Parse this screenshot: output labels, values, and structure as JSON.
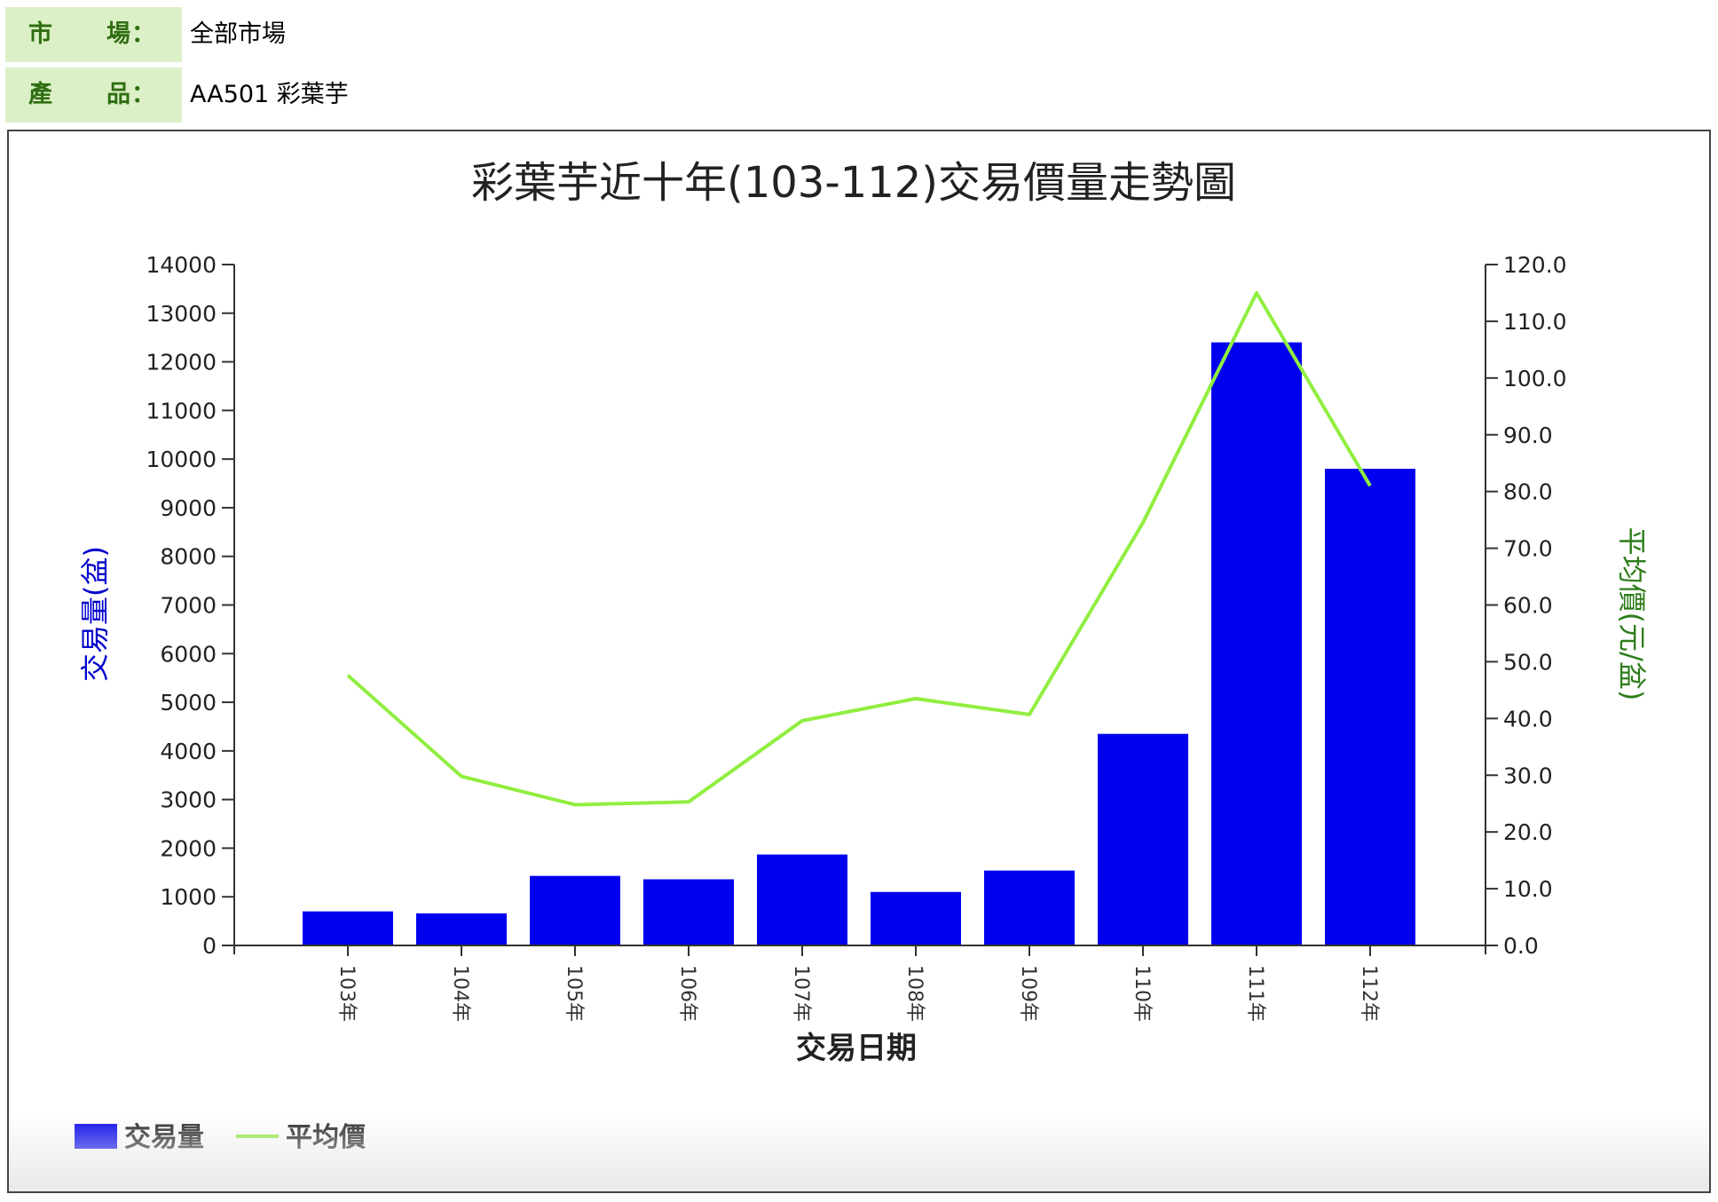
{
  "info": {
    "market": {
      "label_a": "市",
      "label_b": "場：",
      "value": "全部市場"
    },
    "product": {
      "label_a": "產",
      "label_b": "品：",
      "value": "AA501 彩葉芋"
    }
  },
  "chart_data": {
    "type": "bar",
    "title": "彩葉芋近十年(103-112)交易價量走勢圖",
    "xlabel": "交易日期",
    "ylabel": "交易量(盆)",
    "y2label": "平均價(元/盆)",
    "categories": [
      "103年",
      "104年",
      "105年",
      "106年",
      "107年",
      "108年",
      "109年",
      "110年",
      "111年",
      "112年"
    ],
    "series": [
      {
        "name": "交易量",
        "type": "bar",
        "axis": "left",
        "color": "#0000ee",
        "values": [
          700,
          660,
          1430,
          1360,
          1870,
          1100,
          1540,
          4350,
          12400,
          9800
        ]
      },
      {
        "name": "平均價",
        "type": "line",
        "axis": "right",
        "color": "#90ee40",
        "values": [
          47.6,
          29.8,
          24.8,
          25.3,
          39.6,
          43.5,
          40.7,
          74.5,
          115.0,
          81.0
        ]
      }
    ],
    "ylim": [
      0,
      14000
    ],
    "yticks": [
      "0",
      "1000",
      "2000",
      "3000",
      "4000",
      "5000",
      "6000",
      "7000",
      "8000",
      "9000",
      "10000",
      "11000",
      "12000",
      "13000",
      "14000"
    ],
    "y2lim": [
      0,
      120
    ],
    "y2ticks": [
      "0.0",
      "10.0",
      "20.0",
      "30.0",
      "40.0",
      "50.0",
      "60.0",
      "70.0",
      "80.0",
      "90.0",
      "100.0",
      "110.0",
      "120.0"
    ],
    "grid": false,
    "legend": "bottom-left",
    "colors": {
      "left_axis_label": "#0000cc",
      "right_axis_label": "#2e7d1a"
    }
  }
}
